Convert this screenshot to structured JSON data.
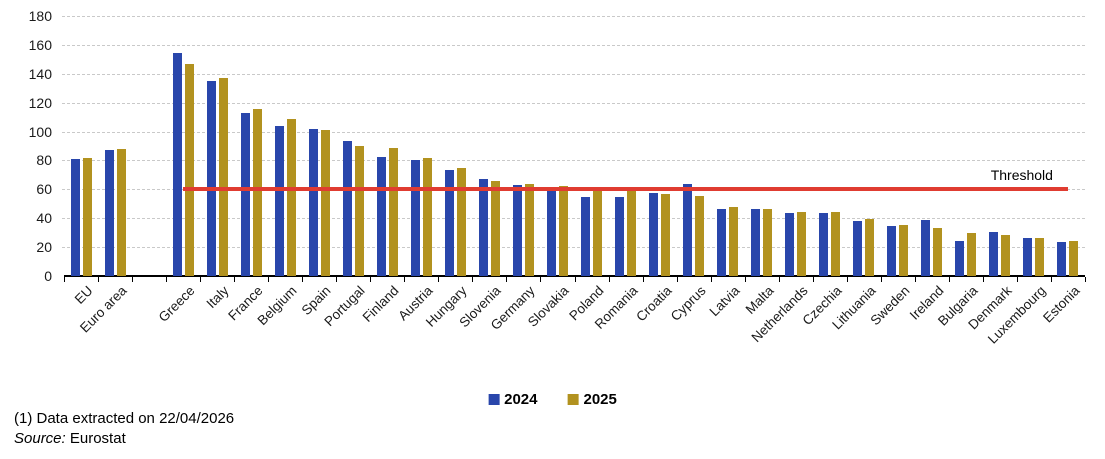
{
  "chart_data": {
    "type": "bar",
    "title": "",
    "categories": [
      "EU",
      "Euro area",
      "Greece",
      "Italy",
      "France",
      "Belgium",
      "Spain",
      "Portugal",
      "Finland",
      "Austria",
      "Hungary",
      "Slovenia",
      "Germany",
      "Slovakia",
      "Poland",
      "Romania",
      "Croatia",
      "Cyprus",
      "Latvia",
      "Malta",
      "Netherlands",
      "Czechia",
      "Lithuania",
      "Sweden",
      "Ireland",
      "Bulgaria",
      "Denmark",
      "Luxembourg",
      "Estonia"
    ],
    "gap_after_index": 1,
    "series": [
      {
        "name": "2024",
        "values": [
          81,
          87,
          154.5,
          135,
          113,
          104,
          102,
          93.5,
          82.5,
          80.5,
          73.5,
          67,
          63,
          59.5,
          55,
          55,
          57.5,
          63.5,
          46.5,
          46.5,
          43.5,
          43.5,
          38,
          34.5,
          39,
          24,
          30.5,
          26.5,
          23.5
        ]
      },
      {
        "name": "2025",
        "values": [
          82,
          88,
          146.5,
          137,
          115.5,
          108.5,
          101,
          90,
          88.5,
          81.5,
          75,
          66,
          64,
          62,
          60.5,
          60.5,
          56.5,
          55.5,
          47.5,
          46.5,
          44.5,
          44.5,
          39.5,
          35.5,
          33,
          29.5,
          28.5,
          26.5,
          24.5
        ]
      }
    ],
    "ylim": [
      0,
      180
    ],
    "ytick_step": 20,
    "ytick_labels": [
      "0",
      "20",
      "40",
      "60",
      "80",
      "100",
      "120",
      "140",
      "160",
      "180"
    ],
    "grid": "horizontal-dashed",
    "legend_position": "bottom",
    "threshold": {
      "label": "Threshold",
      "value": 60
    }
  },
  "colors": {
    "series_2024": "#2946AB",
    "series_2025": "#B2921F",
    "threshold": "#E03C31",
    "grid": "#C9C9C9",
    "axis": "#000000"
  },
  "legend": {
    "items": [
      {
        "label": "2024",
        "color": "#2946AB"
      },
      {
        "label": "2025",
        "color": "#B2921F"
      }
    ]
  },
  "footer": {
    "note": "(1) Data extracted on 22/04/2026",
    "source_label": "Source:",
    "source_value": "Eurostat"
  }
}
